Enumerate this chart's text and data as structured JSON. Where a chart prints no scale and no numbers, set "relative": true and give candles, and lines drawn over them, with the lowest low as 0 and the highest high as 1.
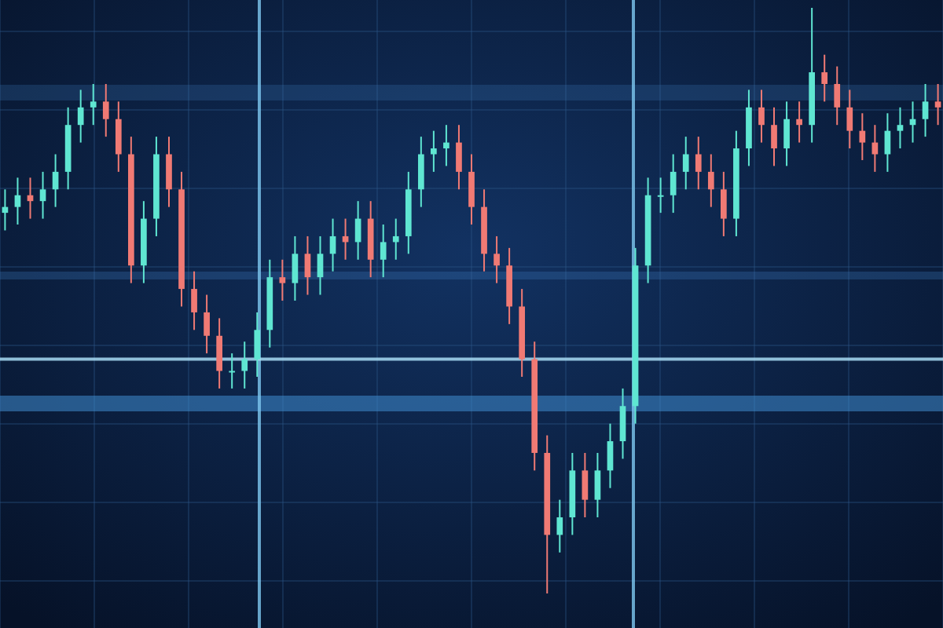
{
  "chart_data": {
    "type": "candlestick",
    "relative": true,
    "grid": true,
    "ref_lines": [
      {
        "axis": "y",
        "value": 0.4,
        "color": "#a8dcf5"
      }
    ],
    "categories": [
      null,
      null,
      null,
      null,
      null,
      null,
      null,
      null,
      null,
      null,
      null,
      null,
      null,
      null,
      null,
      null,
      null,
      null,
      null,
      null,
      null,
      null,
      null,
      null,
      null,
      null,
      null,
      null,
      null,
      null,
      null,
      null,
      null,
      null,
      null,
      null,
      null,
      null,
      null,
      null,
      null,
      null,
      null,
      null,
      null,
      null,
      null,
      null,
      null,
      null,
      null,
      null,
      null,
      null,
      null,
      null,
      null,
      null,
      null,
      null,
      null,
      null,
      null,
      null,
      null,
      null,
      null,
      null,
      null,
      null,
      null,
      null,
      null,
      null,
      null
    ],
    "ohlc": [
      [
        0.65,
        0.69,
        0.62,
        0.66
      ],
      [
        0.66,
        0.71,
        0.63,
        0.68
      ],
      [
        0.68,
        0.71,
        0.64,
        0.67
      ],
      [
        0.67,
        0.72,
        0.64,
        0.69
      ],
      [
        0.69,
        0.75,
        0.66,
        0.72
      ],
      [
        0.72,
        0.83,
        0.69,
        0.8
      ],
      [
        0.8,
        0.86,
        0.77,
        0.83
      ],
      [
        0.83,
        0.87,
        0.8,
        0.84
      ],
      [
        0.84,
        0.87,
        0.78,
        0.81
      ],
      [
        0.81,
        0.84,
        0.72,
        0.75
      ],
      [
        0.75,
        0.78,
        0.53,
        0.56
      ],
      [
        0.56,
        0.67,
        0.53,
        0.64
      ],
      [
        0.64,
        0.78,
        0.61,
        0.75
      ],
      [
        0.75,
        0.78,
        0.66,
        0.69
      ],
      [
        0.69,
        0.72,
        0.49,
        0.52
      ],
      [
        0.52,
        0.55,
        0.45,
        0.48
      ],
      [
        0.48,
        0.51,
        0.41,
        0.44
      ],
      [
        0.44,
        0.47,
        0.35,
        0.38
      ],
      [
        0.38,
        0.41,
        0.35,
        0.38
      ],
      [
        0.38,
        0.43,
        0.35,
        0.4
      ],
      [
        0.4,
        0.48,
        0.37,
        0.45
      ],
      [
        0.45,
        0.57,
        0.42,
        0.54
      ],
      [
        0.54,
        0.57,
        0.5,
        0.53
      ],
      [
        0.53,
        0.61,
        0.5,
        0.58
      ],
      [
        0.58,
        0.61,
        0.51,
        0.54
      ],
      [
        0.54,
        0.61,
        0.51,
        0.58
      ],
      [
        0.58,
        0.64,
        0.55,
        0.61
      ],
      [
        0.61,
        0.64,
        0.57,
        0.6
      ],
      [
        0.6,
        0.67,
        0.57,
        0.64
      ],
      [
        0.64,
        0.67,
        0.54,
        0.57
      ],
      [
        0.57,
        0.63,
        0.54,
        0.6
      ],
      [
        0.6,
        0.64,
        0.57,
        0.61
      ],
      [
        0.61,
        0.72,
        0.58,
        0.69
      ],
      [
        0.69,
        0.78,
        0.66,
        0.75
      ],
      [
        0.75,
        0.79,
        0.72,
        0.76
      ],
      [
        0.76,
        0.8,
        0.73,
        0.77
      ],
      [
        0.77,
        0.8,
        0.69,
        0.72
      ],
      [
        0.72,
        0.75,
        0.63,
        0.66
      ],
      [
        0.66,
        0.69,
        0.55,
        0.58
      ],
      [
        0.58,
        0.61,
        0.53,
        0.56
      ],
      [
        0.56,
        0.59,
        0.46,
        0.49
      ],
      [
        0.49,
        0.52,
        0.37,
        0.4
      ],
      [
        0.4,
        0.43,
        0.21,
        0.24
      ],
      [
        0.24,
        0.27,
        0,
        0.1
      ],
      [
        0.1,
        0.16,
        0.07,
        0.13
      ],
      [
        0.13,
        0.24,
        0.1,
        0.21
      ],
      [
        0.21,
        0.24,
        0.13,
        0.16
      ],
      [
        0.16,
        0.24,
        0.13,
        0.21
      ],
      [
        0.21,
        0.29,
        0.18,
        0.26
      ],
      [
        0.26,
        0.35,
        0.23,
        0.32
      ],
      [
        0.32,
        0.59,
        0.29,
        0.56
      ],
      [
        0.56,
        0.71,
        0.53,
        0.68
      ],
      [
        0.68,
        0.71,
        0.65,
        0.68
      ],
      [
        0.68,
        0.75,
        0.65,
        0.72
      ],
      [
        0.72,
        0.78,
        0.69,
        0.75
      ],
      [
        0.75,
        0.78,
        0.69,
        0.72
      ],
      [
        0.72,
        0.75,
        0.66,
        0.69
      ],
      [
        0.69,
        0.72,
        0.61,
        0.64
      ],
      [
        0.64,
        0.79,
        0.61,
        0.76
      ],
      [
        0.76,
        0.86,
        0.73,
        0.83
      ],
      [
        0.83,
        0.86,
        0.77,
        0.8
      ],
      [
        0.8,
        0.83,
        0.73,
        0.76
      ],
      [
        0.76,
        0.84,
        0.73,
        0.81
      ],
      [
        0.81,
        0.84,
        0.77,
        0.8
      ],
      [
        0.8,
        1,
        0.77,
        0.89
      ],
      [
        0.89,
        0.92,
        0.84,
        0.87
      ],
      [
        0.87,
        0.9,
        0.8,
        0.83
      ],
      [
        0.83,
        0.86,
        0.76,
        0.79
      ],
      [
        0.79,
        0.82,
        0.74,
        0.77
      ],
      [
        0.77,
        0.8,
        0.72,
        0.75
      ],
      [
        0.75,
        0.82,
        0.72,
        0.79
      ],
      [
        0.79,
        0.83,
        0.76,
        0.8
      ],
      [
        0.8,
        0.84,
        0.77,
        0.81
      ],
      [
        0.81,
        0.87,
        0.78,
        0.84
      ],
      [
        0.84,
        0.87,
        0.8,
        0.83
      ]
    ],
    "colors": [
      "#5fe6d2",
      "#5fe6d2",
      "#f07a74",
      "#5fe6d2",
      "#5fe6d2",
      "#5fe6d2",
      "#5fe6d2",
      "#5fe6d2",
      "#f07a74",
      "#f07a74",
      "#f07a74",
      "#5fe6d2",
      "#5fe6d2",
      "#f07a74",
      "#f07a74",
      "#f07a74",
      "#f07a74",
      "#f07a74",
      "#5fe6d2",
      "#5fe6d2",
      "#5fe6d2",
      "#5fe6d2",
      "#f07a74",
      "#5fe6d2",
      "#f07a74",
      "#5fe6d2",
      "#5fe6d2",
      "#f07a74",
      "#5fe6d2",
      "#f07a74",
      "#5fe6d2",
      "#5fe6d2",
      "#5fe6d2",
      "#5fe6d2",
      "#5fe6d2",
      "#5fe6d2",
      "#f07a74",
      "#f07a74",
      "#f07a74",
      "#f07a74",
      "#f07a74",
      "#f07a74",
      "#f07a74",
      "#f07a74",
      "#5fe6d2",
      "#5fe6d2",
      "#f07a74",
      "#5fe6d2",
      "#5fe6d2",
      "#5fe6d2",
      "#5fe6d2",
      "#5fe6d2",
      "#5fe6d2",
      "#5fe6d2",
      "#5fe6d2",
      "#f07a74",
      "#f07a74",
      "#f07a74",
      "#5fe6d2",
      "#5fe6d2",
      "#f07a74",
      "#f07a74",
      "#5fe6d2",
      "#f07a74",
      "#5fe6d2",
      "#f07a74",
      "#f07a74",
      "#f07a74",
      "#f07a74",
      "#f07a74",
      "#5fe6d2",
      "#5fe6d2",
      "#5fe6d2",
      "#5fe6d2",
      "#f07a74"
    ]
  }
}
